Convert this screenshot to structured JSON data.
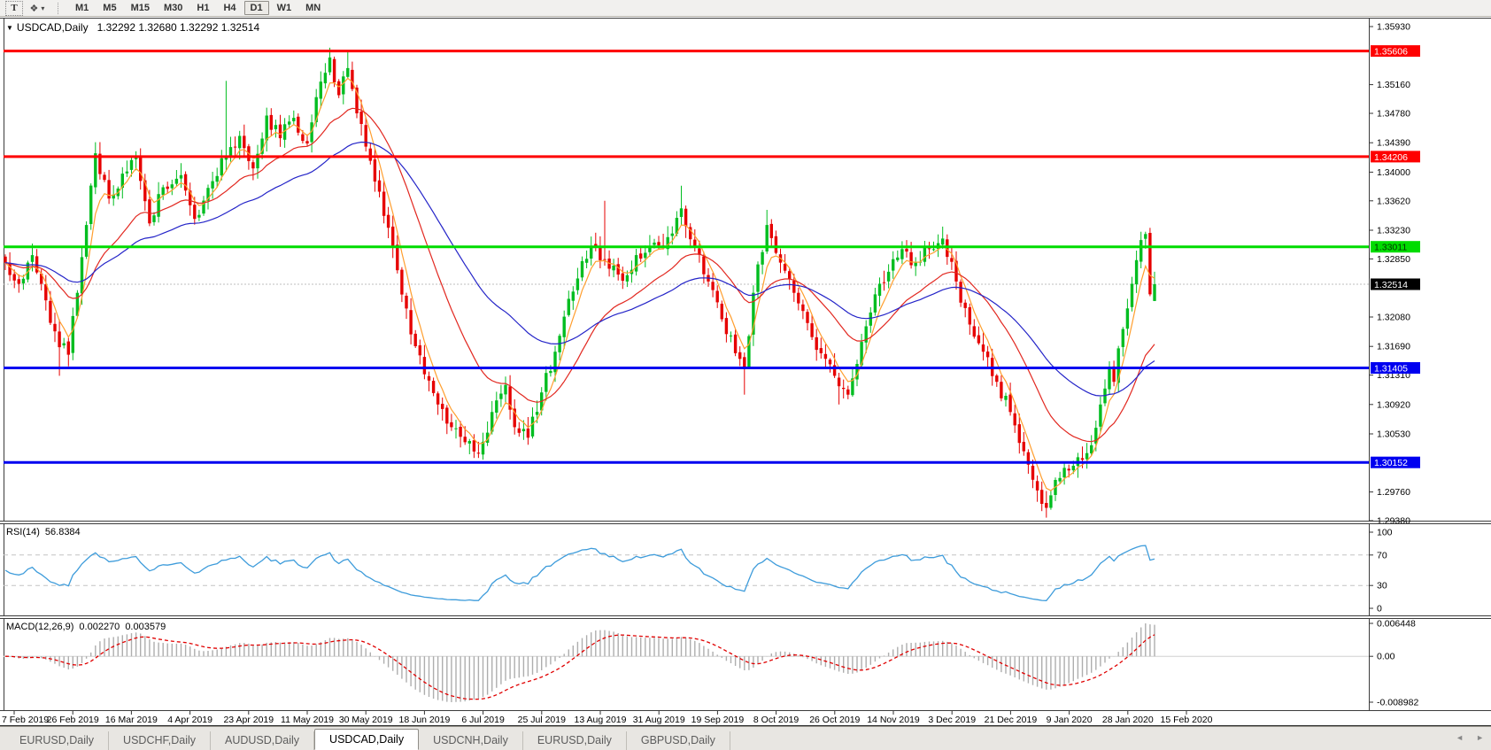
{
  "toolbar": {
    "text_tool": "T",
    "shapes_tool_glyph": "❖",
    "dropdown_caret": "▾",
    "timeframes": [
      "M1",
      "M5",
      "M15",
      "M30",
      "H1",
      "H4",
      "D1",
      "W1",
      "MN"
    ],
    "active_timeframe": "D1"
  },
  "window": {
    "collapse_icon": "▼",
    "title_symbol": "USDCAD,Daily",
    "title_ohlc": "1.32292 1.32680 1.32292 1.32514"
  },
  "rsi": {
    "label": "RSI(14)",
    "value": "56.8384",
    "axis_ticks": [
      "100",
      "70",
      "30",
      "0"
    ]
  },
  "macd": {
    "label": "MACD(12,26,9)",
    "value1": "0.002270",
    "value2": "0.003579",
    "axis_ticks": [
      "0.006448",
      "0.00",
      "-0.008982"
    ]
  },
  "tabs": [
    {
      "label": "EURUSD,Daily",
      "active": false
    },
    {
      "label": "USDCHF,Daily",
      "active": false
    },
    {
      "label": "AUDUSD,Daily",
      "active": false
    },
    {
      "label": "USDCAD,Daily",
      "active": true
    },
    {
      "label": "USDCNH,Daily",
      "active": false
    },
    {
      "label": "EURUSD,Daily",
      "active": false
    },
    {
      "label": "GBPUSD,Daily",
      "active": false
    }
  ],
  "tab_scroll": {
    "left": "◄",
    "right": "►"
  },
  "chart_data": {
    "type": "candlestick",
    "symbol": "USDCAD",
    "timeframe": "Daily",
    "ohlc": {
      "open": "1.32292",
      "high": "1.32680",
      "low": "1.32292",
      "close": "1.32514"
    },
    "y_axis_ticks": [
      "1.35930",
      "1.35160",
      "1.34780",
      "1.34390",
      "1.34000",
      "1.33620",
      "1.33230",
      "1.32850",
      "1.32080",
      "1.31690",
      "1.31310",
      "1.30920",
      "1.30530",
      "1.29760",
      "1.29380"
    ],
    "y_range": {
      "top": 1.3593,
      "bottom": 1.2938
    },
    "x_axis_labels": [
      "7 Feb 2019",
      "26 Feb 2019",
      "16 Mar 2019",
      "4 Apr 2019",
      "23 Apr 2019",
      "11 May 2019",
      "30 May 2019",
      "18 Jun 2019",
      "6 Jul 2019",
      "25 Jul 2019",
      "13 Aug 2019",
      "31 Aug 2019",
      "19 Sep 2019",
      "8 Oct 2019",
      "26 Oct 2019",
      "14 Nov 2019",
      "3 Dec 2019",
      "21 Dec 2019",
      "9 Jan 2020",
      "28 Jan 2020",
      "15 Feb 2020"
    ],
    "bars_per_label": 13,
    "candle_count": 256,
    "horizontal_levels": [
      {
        "price": 1.35606,
        "label": "1.35606",
        "color": "#fe0000",
        "text": "#ffffff"
      },
      {
        "price": 1.34206,
        "label": "1.34206",
        "color": "#fe0000",
        "text": "#ffffff"
      },
      {
        "price": 1.33011,
        "label": "1.33011",
        "color": "#00dc00",
        "text": "#003300"
      },
      {
        "price": 1.31405,
        "label": "1.31405",
        "color": "#0000f0",
        "text": "#ffffff"
      },
      {
        "price": 1.30152,
        "label": "1.30152",
        "color": "#0000f0",
        "text": "#ffffff"
      }
    ],
    "current_price": {
      "value": 1.32514,
      "label": "1.32514",
      "line_color": "#bdbdbd",
      "label_bg": "#000000",
      "text": "#ffffff"
    },
    "price_waypoints": [
      [
        0,
        1.328
      ],
      [
        3,
        1.3252
      ],
      [
        6,
        1.329
      ],
      [
        9,
        1.323
      ],
      [
        12,
        1.3168
      ],
      [
        14,
        1.3158
      ],
      [
        16,
        1.324
      ],
      [
        18,
        1.333
      ],
      [
        20,
        1.3425
      ],
      [
        23,
        1.3365
      ],
      [
        26,
        1.3398
      ],
      [
        29,
        1.342
      ],
      [
        32,
        1.3332
      ],
      [
        35,
        1.338
      ],
      [
        39,
        1.3396
      ],
      [
        42,
        1.3338
      ],
      [
        46,
        1.3388
      ],
      [
        49,
        1.342
      ],
      [
        52,
        1.3448
      ],
      [
        55,
        1.3405
      ],
      [
        58,
        1.3475
      ],
      [
        61,
        1.3445
      ],
      [
        64,
        1.3472
      ],
      [
        67,
        1.3438
      ],
      [
        70,
        1.352
      ],
      [
        72,
        1.3552
      ],
      [
        74,
        1.3502
      ],
      [
        76,
        1.3538
      ],
      [
        78,
        1.3478
      ],
      [
        81,
        1.3415
      ],
      [
        84,
        1.3342
      ],
      [
        87,
        1.327
      ],
      [
        90,
        1.3185
      ],
      [
        93,
        1.3132
      ],
      [
        96,
        1.3092
      ],
      [
        99,
        1.3062
      ],
      [
        102,
        1.3042
      ],
      [
        105,
        1.3028
      ],
      [
        108,
        1.3082
      ],
      [
        111,
        1.3118
      ],
      [
        113,
        1.3062
      ],
      [
        116,
        1.3048
      ],
      [
        119,
        1.3108
      ],
      [
        122,
        1.3162
      ],
      [
        125,
        1.3232
      ],
      [
        128,
        1.3282
      ],
      [
        131,
        1.33
      ],
      [
        134,
        1.3272
      ],
      [
        137,
        1.3256
      ],
      [
        140,
        1.329
      ],
      [
        143,
        1.3302
      ],
      [
        146,
        1.33
      ],
      [
        150,
        1.3352
      ],
      [
        153,
        1.33
      ],
      [
        156,
        1.3255
      ],
      [
        159,
        1.3205
      ],
      [
        162,
        1.316
      ],
      [
        164,
        1.314
      ],
      [
        166,
        1.324
      ],
      [
        169,
        1.333
      ],
      [
        172,
        1.328
      ],
      [
        175,
        1.324
      ],
      [
        178,
        1.32
      ],
      [
        181,
        1.316
      ],
      [
        184,
        1.313
      ],
      [
        187,
        1.3105
      ],
      [
        190,
        1.3175
      ],
      [
        193,
        1.3238
      ],
      [
        196,
        1.3268
      ],
      [
        199,
        1.3298
      ],
      [
        202,
        1.328
      ],
      [
        205,
        1.3298
      ],
      [
        208,
        1.3312
      ],
      [
        211,
        1.3255
      ],
      [
        214,
        1.3198
      ],
      [
        217,
        1.3162
      ],
      [
        220,
        1.3122
      ],
      [
        223,
        1.3082
      ],
      [
        226,
        1.303
      ],
      [
        229,
        1.2978
      ],
      [
        231,
        1.2955
      ],
      [
        233,
        1.2992
      ],
      [
        235,
        1.3008
      ],
      [
        238,
        1.3022
      ],
      [
        241,
        1.3038
      ],
      [
        243,
        1.3092
      ],
      [
        245,
        1.3142
      ],
      [
        246,
        1.3122
      ],
      [
        248,
        1.3192
      ],
      [
        250,
        1.3252
      ],
      [
        252,
        1.331
      ],
      [
        253,
        1.3318
      ],
      [
        254,
        1.3238
      ],
      [
        255,
        1.32514
      ]
    ],
    "wick_overrides": {
      "12": {
        "low": 1.313
      },
      "49": {
        "high": 1.3521
      },
      "72": {
        "high": 1.3565
      },
      "76": {
        "high": 1.356
      },
      "133": {
        "high": 1.3362
      },
      "150": {
        "high": 1.3382
      },
      "164": {
        "low": 1.3105
      },
      "169": {
        "high": 1.335
      },
      "185": {
        "low": 1.3092
      },
      "231": {
        "low": 1.2942
      }
    },
    "last_candle": {
      "open": 1.32292,
      "high": 1.3268,
      "low": 1.32292,
      "close": 1.32514
    },
    "moving_averages": [
      {
        "name": "fast",
        "period": 5,
        "color": "#ff9e2e"
      },
      {
        "name": "medium",
        "period": 22,
        "color": "#e22820"
      },
      {
        "name": "slow",
        "period": 50,
        "color": "#2424c8"
      }
    ],
    "indicators": [
      {
        "type": "RSI",
        "period": 14,
        "value": 56.8384,
        "range": [
          0,
          100
        ],
        "levels": [
          70,
          30
        ],
        "color": "#3e9cdb"
      },
      {
        "type": "MACD",
        "fast": 12,
        "slow": 26,
        "signal": 9,
        "macd_value": 0.00227,
        "signal_value": 0.003579,
        "range": [
          -0.008982,
          0.006448
        ],
        "histogram_color": "#aeaeae",
        "signal_color": "#e00000"
      }
    ],
    "colors": {
      "up": "#00bd20",
      "down": "#e60000",
      "background": "#ffffff",
      "axis_text": "#000000"
    }
  }
}
